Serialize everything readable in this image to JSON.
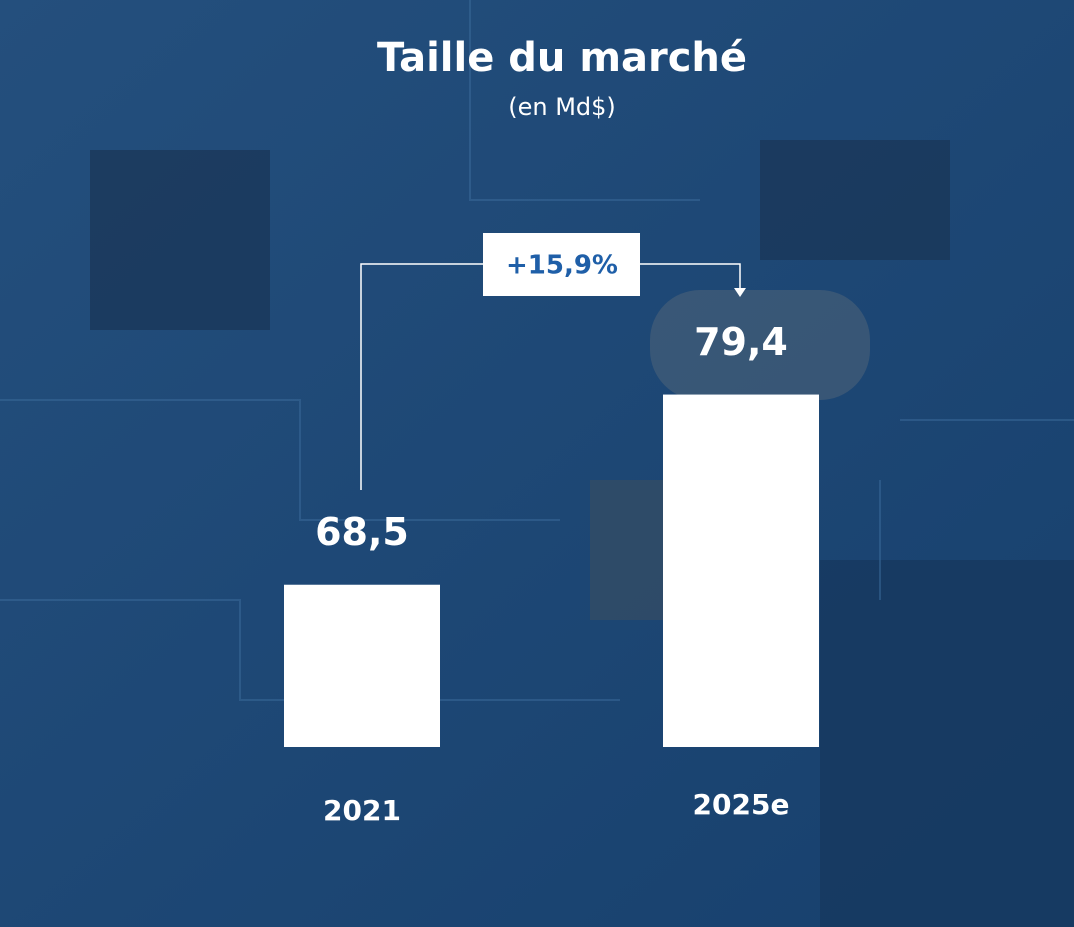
{
  "chart_data": {
    "type": "bar",
    "title": "Taille du marché",
    "subtitle": "(en Md$)",
    "categories": [
      "2021",
      "2025e"
    ],
    "values": [
      68.5,
      79.4
    ],
    "value_labels": [
      "68,5",
      "79,4"
    ],
    "color": "#ffffff",
    "ylim": [
      59.2,
      83.1
    ],
    "annotation": "+15,9%"
  }
}
